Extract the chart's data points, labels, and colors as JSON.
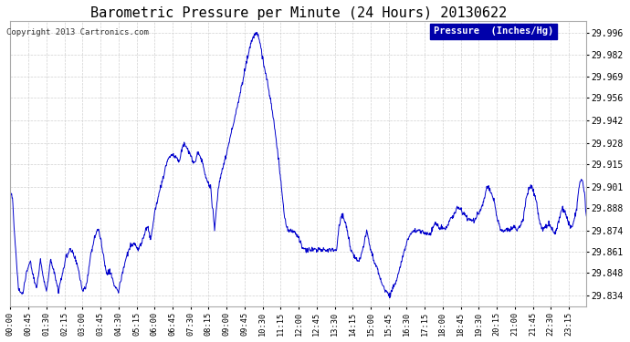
{
  "title": "Barometric Pressure per Minute (24 Hours) 20130622",
  "copyright": "Copyright 2013 Cartronics.com",
  "legend_label": "Pressure  (Inches/Hg)",
  "legend_bg": "#0000aa",
  "legend_text_color": "#ffffff",
  "line_color": "#0000cc",
  "background_color": "#ffffff",
  "grid_color": "#cccccc",
  "title_fontsize": 11,
  "ylabel_ticks": [
    29.834,
    29.848,
    29.861,
    29.874,
    29.888,
    29.901,
    29.915,
    29.928,
    29.942,
    29.956,
    29.969,
    29.982,
    29.996
  ],
  "ylim": [
    29.827,
    30.003
  ],
  "xtick_labels": [
    "00:00",
    "00:45",
    "01:30",
    "02:15",
    "03:00",
    "03:45",
    "04:30",
    "05:15",
    "06:00",
    "06:45",
    "07:30",
    "08:15",
    "09:00",
    "09:45",
    "10:30",
    "11:15",
    "12:00",
    "12:45",
    "13:30",
    "14:15",
    "15:00",
    "15:45",
    "16:30",
    "17:15",
    "18:00",
    "18:45",
    "19:30",
    "20:15",
    "21:00",
    "21:45",
    "22:30",
    "23:15"
  ],
  "keypoints": [
    [
      0,
      29.897
    ],
    [
      5,
      29.895
    ],
    [
      10,
      29.872
    ],
    [
      20,
      29.838
    ],
    [
      30,
      29.834
    ],
    [
      40,
      29.848
    ],
    [
      50,
      29.855
    ],
    [
      55,
      29.848
    ],
    [
      65,
      29.838
    ],
    [
      75,
      29.856
    ],
    [
      80,
      29.848
    ],
    [
      90,
      29.836
    ],
    [
      100,
      29.856
    ],
    [
      110,
      29.848
    ],
    [
      120,
      29.836
    ],
    [
      130,
      29.848
    ],
    [
      140,
      29.858
    ],
    [
      150,
      29.863
    ],
    [
      160,
      29.858
    ],
    [
      170,
      29.85
    ],
    [
      180,
      29.836
    ],
    [
      190,
      29.84
    ],
    [
      200,
      29.858
    ],
    [
      210,
      29.87
    ],
    [
      220,
      29.875
    ],
    [
      230,
      29.862
    ],
    [
      240,
      29.848
    ],
    [
      250,
      29.848
    ],
    [
      260,
      29.84
    ],
    [
      270,
      29.836
    ],
    [
      280,
      29.848
    ],
    [
      290,
      29.858
    ],
    [
      300,
      29.865
    ],
    [
      310,
      29.865
    ],
    [
      320,
      29.862
    ],
    [
      330,
      29.868
    ],
    [
      340,
      29.876
    ],
    [
      345,
      29.875
    ],
    [
      350,
      29.868
    ],
    [
      355,
      29.875
    ],
    [
      360,
      29.885
    ],
    [
      370,
      29.895
    ],
    [
      380,
      29.905
    ],
    [
      390,
      29.916
    ],
    [
      400,
      29.92
    ],
    [
      410,
      29.921
    ],
    [
      420,
      29.916
    ],
    [
      425,
      29.92
    ],
    [
      430,
      29.926
    ],
    [
      435,
      29.928
    ],
    [
      440,
      29.925
    ],
    [
      450,
      29.92
    ],
    [
      455,
      29.916
    ],
    [
      460,
      29.916
    ],
    [
      465,
      29.92
    ],
    [
      470,
      29.922
    ],
    [
      480,
      29.915
    ],
    [
      490,
      29.905
    ],
    [
      500,
      29.901
    ],
    [
      510,
      29.875
    ],
    [
      520,
      29.901
    ],
    [
      530,
      29.912
    ],
    [
      540,
      29.922
    ],
    [
      550,
      29.932
    ],
    [
      560,
      29.943
    ],
    [
      570,
      29.954
    ],
    [
      580,
      29.966
    ],
    [
      590,
      29.978
    ],
    [
      600,
      29.989
    ],
    [
      610,
      29.995
    ],
    [
      615,
      29.996
    ],
    [
      620,
      29.993
    ],
    [
      625,
      29.988
    ],
    [
      630,
      29.98
    ],
    [
      640,
      29.968
    ],
    [
      650,
      29.954
    ],
    [
      660,
      29.938
    ],
    [
      665,
      29.928
    ],
    [
      670,
      29.918
    ],
    [
      675,
      29.905
    ],
    [
      680,
      29.893
    ],
    [
      685,
      29.882
    ],
    [
      690,
      29.876
    ],
    [
      695,
      29.875
    ],
    [
      700,
      29.874
    ],
    [
      710,
      29.873
    ],
    [
      720,
      29.87
    ],
    [
      730,
      29.863
    ],
    [
      740,
      29.862
    ],
    [
      750,
      29.862
    ],
    [
      760,
      29.862
    ],
    [
      770,
      29.862
    ],
    [
      780,
      29.862
    ],
    [
      790,
      29.862
    ],
    [
      800,
      29.862
    ],
    [
      810,
      29.862
    ],
    [
      815,
      29.862
    ],
    [
      820,
      29.875
    ],
    [
      825,
      29.882
    ],
    [
      830,
      29.884
    ],
    [
      835,
      29.88
    ],
    [
      840,
      29.875
    ],
    [
      850,
      29.862
    ],
    [
      860,
      29.858
    ],
    [
      870,
      29.855
    ],
    [
      880,
      29.862
    ],
    [
      885,
      29.868
    ],
    [
      890,
      29.875
    ],
    [
      895,
      29.868
    ],
    [
      900,
      29.862
    ],
    [
      910,
      29.854
    ],
    [
      920,
      29.848
    ],
    [
      925,
      29.843
    ],
    [
      930,
      29.84
    ],
    [
      935,
      29.837
    ],
    [
      940,
      29.836
    ],
    [
      945,
      29.834
    ],
    [
      950,
      29.836
    ],
    [
      960,
      29.84
    ],
    [
      970,
      29.848
    ],
    [
      980,
      29.858
    ],
    [
      990,
      29.866
    ],
    [
      1000,
      29.872
    ],
    [
      1010,
      29.874
    ],
    [
      1020,
      29.874
    ],
    [
      1025,
      29.874
    ],
    [
      1030,
      29.873
    ],
    [
      1035,
      29.872
    ],
    [
      1040,
      29.872
    ],
    [
      1050,
      29.872
    ],
    [
      1055,
      29.875
    ],
    [
      1060,
      29.878
    ],
    [
      1065,
      29.878
    ],
    [
      1070,
      29.876
    ],
    [
      1080,
      29.875
    ],
    [
      1090,
      29.876
    ],
    [
      1095,
      29.878
    ],
    [
      1100,
      29.881
    ],
    [
      1110,
      29.884
    ],
    [
      1115,
      29.888
    ],
    [
      1120,
      29.888
    ],
    [
      1125,
      29.887
    ],
    [
      1130,
      29.885
    ],
    [
      1140,
      29.882
    ],
    [
      1150,
      29.88
    ],
    [
      1155,
      29.88
    ],
    [
      1160,
      29.881
    ],
    [
      1170,
      29.885
    ],
    [
      1180,
      29.89
    ],
    [
      1185,
      29.895
    ],
    [
      1190,
      29.9
    ],
    [
      1195,
      29.9
    ],
    [
      1200,
      29.898
    ],
    [
      1205,
      29.895
    ],
    [
      1210,
      29.89
    ],
    [
      1215,
      29.884
    ],
    [
      1220,
      29.878
    ],
    [
      1225,
      29.874
    ],
    [
      1230,
      29.874
    ],
    [
      1240,
      29.874
    ],
    [
      1250,
      29.875
    ],
    [
      1260,
      29.876
    ],
    [
      1265,
      29.874
    ],
    [
      1270,
      29.875
    ],
    [
      1280,
      29.88
    ],
    [
      1285,
      29.888
    ],
    [
      1290,
      29.895
    ],
    [
      1295,
      29.9
    ],
    [
      1300,
      29.902
    ],
    [
      1305,
      29.9
    ],
    [
      1310,
      29.896
    ],
    [
      1315,
      29.89
    ],
    [
      1320,
      29.882
    ],
    [
      1325,
      29.877
    ],
    [
      1330,
      29.875
    ],
    [
      1335,
      29.875
    ],
    [
      1340,
      29.876
    ],
    [
      1345,
      29.878
    ],
    [
      1350,
      29.876
    ],
    [
      1355,
      29.874
    ],
    [
      1360,
      29.872
    ],
    [
      1365,
      29.875
    ],
    [
      1370,
      29.88
    ],
    [
      1375,
      29.885
    ],
    [
      1380,
      29.888
    ],
    [
      1385,
      29.886
    ],
    [
      1390,
      29.882
    ],
    [
      1395,
      29.878
    ],
    [
      1400,
      29.876
    ],
    [
      1405,
      29.877
    ],
    [
      1410,
      29.882
    ],
    [
      1415,
      29.887
    ],
    [
      1420,
      29.9
    ],
    [
      1425,
      29.905
    ],
    [
      1430,
      29.904
    ],
    [
      1435,
      29.896
    ],
    [
      1439,
      29.882
    ]
  ]
}
